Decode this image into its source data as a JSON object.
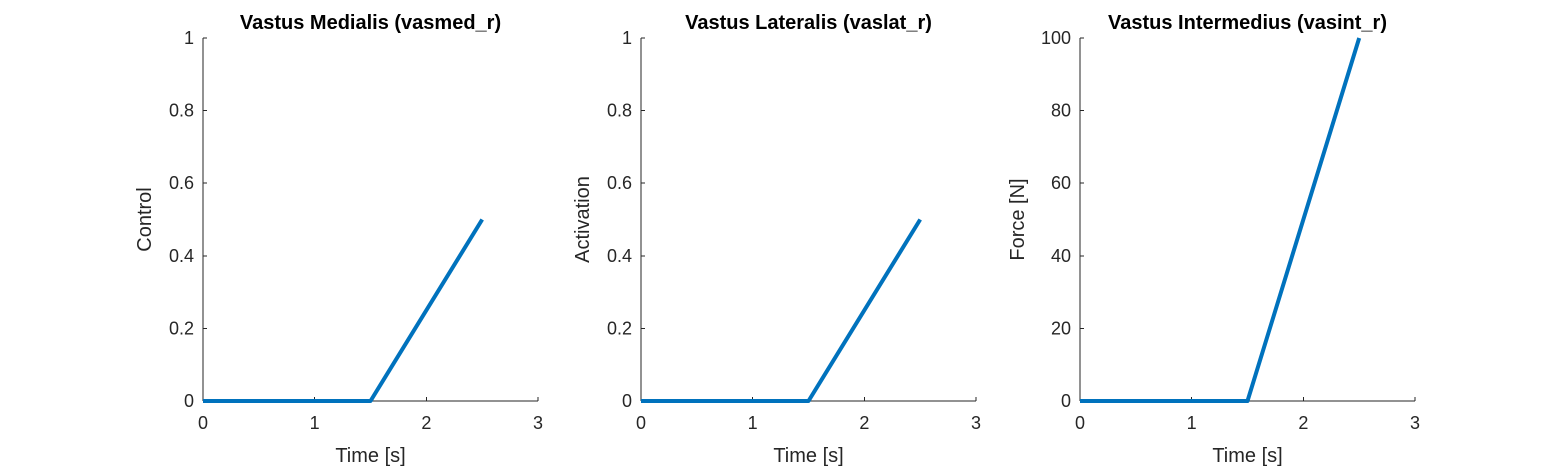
{
  "chart_data": [
    {
      "type": "line",
      "title": "Vastus Medialis (vasmed_r)",
      "xlabel": "Time [s]",
      "ylabel": "Control",
      "xlim": [
        0,
        3
      ],
      "ylim": [
        0,
        1
      ],
      "xticks": [
        0,
        1,
        2,
        3
      ],
      "xtick_labels": [
        "0",
        "1",
        "2",
        "3"
      ],
      "yticks": [
        0,
        0.2,
        0.4,
        0.6,
        0.8,
        1
      ],
      "ytick_labels": [
        "0",
        "0.2",
        "0.4",
        "0.6",
        "0.8",
        "1"
      ],
      "grid": false,
      "series": [
        {
          "x": [
            0,
            1.5,
            2.5
          ],
          "y": [
            0,
            0,
            0.5
          ],
          "color": "#0072BD"
        }
      ]
    },
    {
      "type": "line",
      "title": "Vastus Lateralis (vaslat_r)",
      "xlabel": "Time [s]",
      "ylabel": "Activation",
      "xlim": [
        0,
        3
      ],
      "ylim": [
        0,
        1
      ],
      "xticks": [
        0,
        1,
        2,
        3
      ],
      "xtick_labels": [
        "0",
        "1",
        "2",
        "3"
      ],
      "yticks": [
        0,
        0.2,
        0.4,
        0.6,
        0.8,
        1
      ],
      "ytick_labels": [
        "0",
        "0.2",
        "0.4",
        "0.6",
        "0.8",
        "1"
      ],
      "grid": false,
      "series": [
        {
          "x": [
            0,
            1.5,
            2.5
          ],
          "y": [
            0,
            0,
            0.5
          ],
          "color": "#0072BD"
        }
      ]
    },
    {
      "type": "line",
      "title": "Vastus Intermedius (vasint_r)",
      "xlabel": "Time [s]",
      "ylabel": "Force [N]",
      "xlim": [
        0,
        3
      ],
      "ylim": [
        0,
        100
      ],
      "xticks": [
        0,
        1,
        2,
        3
      ],
      "xtick_labels": [
        "0",
        "1",
        "2",
        "3"
      ],
      "yticks": [
        0,
        20,
        40,
        60,
        80,
        100
      ],
      "ytick_labels": [
        "0",
        "20",
        "40",
        "60",
        "80",
        "100"
      ],
      "grid": false,
      "series": [
        {
          "x": [
            0,
            1.5,
            2.5
          ],
          "y": [
            0,
            0,
            100
          ],
          "color": "#0072BD"
        }
      ]
    }
  ]
}
